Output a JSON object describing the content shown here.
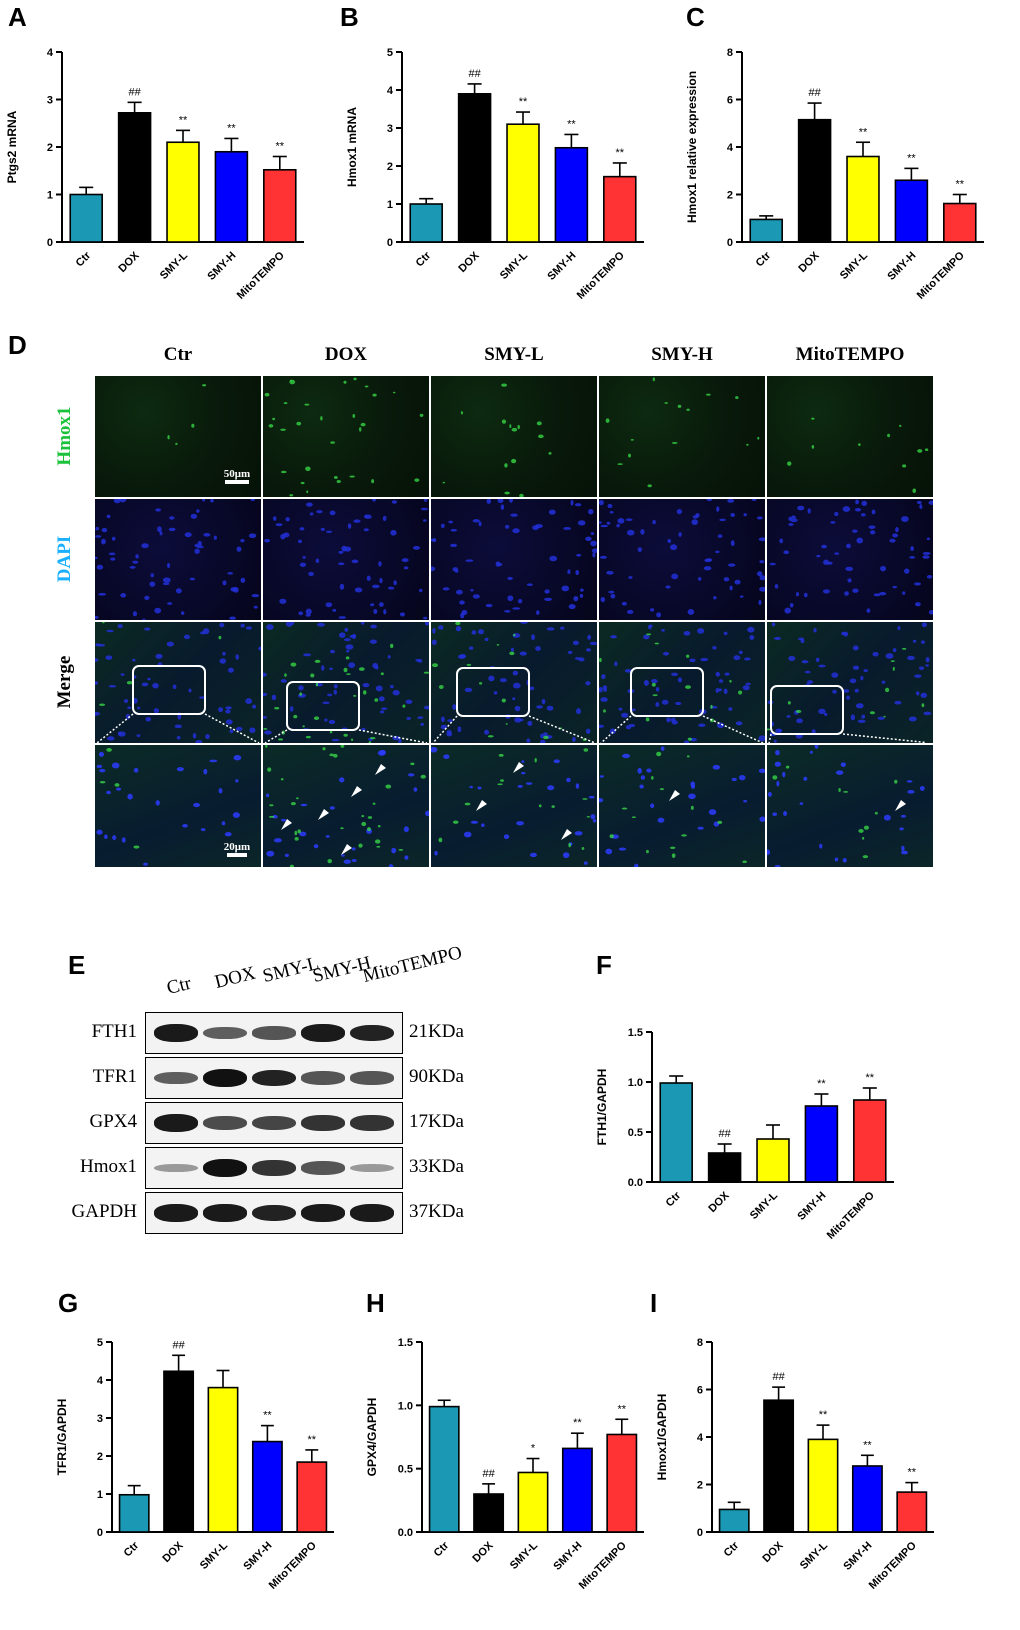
{
  "panel_letters": [
    "A",
    "B",
    "C",
    "D",
    "E",
    "F",
    "G",
    "H",
    "I"
  ],
  "colors": {
    "Ctr": "#1a98b4",
    "DOX": "#000000",
    "SMY-L": "#ffff00",
    "SMY-H": "#0000ff",
    "MitoTEMPO": "#ff3333"
  },
  "chart_data": [
    {
      "id": "A",
      "type": "bar",
      "categories": [
        "Ctr",
        "DOX",
        "SMY-L",
        "SMY-H",
        "MitoTEMPO"
      ],
      "values": [
        1.0,
        2.72,
        2.1,
        1.9,
        1.52
      ],
      "errors": [
        0.15,
        0.22,
        0.25,
        0.28,
        0.28
      ],
      "annotations": [
        "",
        "##",
        "**",
        "**",
        "**"
      ],
      "ylabel": "Ptgs2 mRNA",
      "ylim": [
        0,
        4
      ],
      "yticks": [
        "0",
        "1",
        "2",
        "3",
        "4"
      ]
    },
    {
      "id": "B",
      "type": "bar",
      "categories": [
        "Ctr",
        "DOX",
        "SMY-L",
        "SMY-H",
        "MitoTEMPO"
      ],
      "values": [
        1.0,
        3.9,
        3.1,
        2.48,
        1.72
      ],
      "errors": [
        0.14,
        0.26,
        0.32,
        0.35,
        0.36
      ],
      "annotations": [
        "",
        "##",
        "**",
        "**",
        "**"
      ],
      "ylabel": "Hmox1 mRNA",
      "ylim": [
        0,
        5
      ],
      "yticks": [
        "0",
        "1",
        "2",
        "3",
        "4",
        "5"
      ]
    },
    {
      "id": "C",
      "type": "bar",
      "categories": [
        "Ctr",
        "DOX",
        "SMY-L",
        "SMY-H",
        "MitoTEMPO"
      ],
      "values": [
        0.95,
        5.15,
        3.6,
        2.6,
        1.62
      ],
      "errors": [
        0.15,
        0.7,
        0.6,
        0.5,
        0.38
      ],
      "annotations": [
        "",
        "##",
        "**",
        "**",
        "**"
      ],
      "ylabel": "Hmox1 relative expression",
      "ylim": [
        0,
        8
      ],
      "yticks": [
        "0",
        "2",
        "4",
        "6",
        "8"
      ]
    },
    {
      "id": "F",
      "type": "bar",
      "categories": [
        "Ctr",
        "DOX",
        "SMY-L",
        "SMY-H",
        "MitoTEMPO"
      ],
      "values": [
        0.99,
        0.29,
        0.43,
        0.76,
        0.82
      ],
      "errors": [
        0.07,
        0.09,
        0.14,
        0.12,
        0.12
      ],
      "annotations": [
        "",
        "##",
        "",
        "**",
        "**"
      ],
      "ylabel": "FTH1/GAPDH",
      "ylim": [
        0,
        1.5
      ],
      "yticks": [
        "0.0",
        "0.5",
        "1.0",
        "1.5"
      ]
    },
    {
      "id": "G",
      "type": "bar",
      "categories": [
        "Ctr",
        "DOX",
        "SMY-L",
        "SMY-H",
        "MitoTEMPO"
      ],
      "values": [
        0.98,
        4.23,
        3.8,
        2.38,
        1.84
      ],
      "errors": [
        0.24,
        0.42,
        0.45,
        0.42,
        0.32
      ],
      "annotations": [
        "",
        "##",
        "",
        "**",
        "**"
      ],
      "ylabel": "TFR1/GAPDH",
      "ylim": [
        0,
        5
      ],
      "yticks": [
        "0",
        "1",
        "2",
        "3",
        "4",
        "5"
      ]
    },
    {
      "id": "H",
      "type": "bar",
      "categories": [
        "Ctr",
        "DOX",
        "SMY-L",
        "SMY-H",
        "MitoTEMPO"
      ],
      "values": [
        0.99,
        0.3,
        0.47,
        0.66,
        0.77
      ],
      "errors": [
        0.05,
        0.08,
        0.11,
        0.12,
        0.12
      ],
      "annotations": [
        "",
        "##",
        "*",
        "**",
        "**"
      ],
      "ylabel": "GPX4/GAPDH",
      "ylim": [
        0,
        1.5
      ],
      "yticks": [
        "0.0",
        "0.5",
        "1.0",
        "1.5"
      ]
    },
    {
      "id": "I",
      "type": "bar",
      "categories": [
        "Ctr",
        "DOX",
        "SMY-L",
        "SMY-H",
        "MitoTEMPO"
      ],
      "values": [
        0.95,
        5.55,
        3.9,
        2.78,
        1.68
      ],
      "errors": [
        0.3,
        0.55,
        0.6,
        0.45,
        0.4
      ],
      "annotations": [
        "",
        "##",
        "**",
        "**",
        "**"
      ],
      "ylabel": "Hmox1/GAPDH",
      "ylim": [
        0,
        8
      ],
      "yticks": [
        "0",
        "2",
        "4",
        "6",
        "8"
      ]
    }
  ],
  "microscopy": {
    "columns": [
      "Ctr",
      "DOX",
      "SMY-L",
      "SMY-H",
      "MitoTEMPO"
    ],
    "rows": [
      "Hmox1",
      "DAPI",
      "Merge"
    ],
    "row_colors": {
      "Hmox1": "#19c23a",
      "DAPI": "#1ab0ff",
      "Merge": "#000000"
    },
    "scale_top": "50μm",
    "scale_bottom": "20μm"
  },
  "western": {
    "columns": [
      "Ctr",
      "DOX",
      "SMY-L",
      "SMY-H",
      "MitoTEMPO"
    ],
    "proteins": [
      {
        "name": "FTH1",
        "kda": "21KDa",
        "intensity": [
          0.95,
          0.55,
          0.6,
          0.95,
          0.9
        ]
      },
      {
        "name": "TFR1",
        "kda": "90KDa",
        "intensity": [
          0.55,
          1.0,
          0.9,
          0.6,
          0.6
        ]
      },
      {
        "name": "GPX4",
        "kda": "17KDa",
        "intensity": [
          0.95,
          0.65,
          0.7,
          0.8,
          0.8
        ]
      },
      {
        "name": "Hmox1",
        "kda": "33KDa",
        "intensity": [
          0.2,
          1.0,
          0.8,
          0.6,
          0.2
        ]
      },
      {
        "name": "GAPDH",
        "kda": "37KDa",
        "intensity": [
          0.95,
          0.95,
          0.9,
          0.95,
          0.95
        ]
      }
    ]
  }
}
